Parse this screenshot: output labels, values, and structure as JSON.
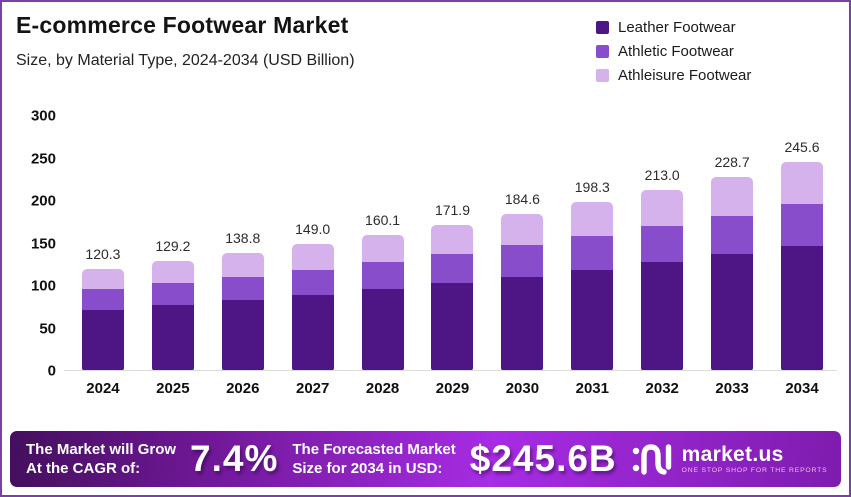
{
  "header": {
    "title": "E-commerce Footwear Market",
    "subtitle": "Size, by Material Type, 2024-2034 (USD Billion)"
  },
  "legend": {
    "items": [
      {
        "label": "Leather Footwear",
        "color": "#4d1684"
      },
      {
        "label": "Athletic Footwear",
        "color": "#874dcb"
      },
      {
        "label": "Athleisure Footwear",
        "color": "#d5b2ec"
      }
    ]
  },
  "chart_data": {
    "type": "bar",
    "stacked": true,
    "title": "E-commerce Footwear Market",
    "subtitle": "Size, by Material Type, 2024-2034 (USD Billion)",
    "categories": [
      "2024",
      "2025",
      "2026",
      "2027",
      "2028",
      "2029",
      "2030",
      "2031",
      "2032",
      "2033",
      "2034"
    ],
    "series": [
      {
        "name": "Leather Footwear",
        "color": "#4d1684",
        "values": [
          72.2,
          77.5,
          83.3,
          89.4,
          96.1,
          103.1,
          110.8,
          119.0,
          127.8,
          137.2,
          147.4
        ]
      },
      {
        "name": "Athletic Footwear",
        "color": "#874dcb",
        "values": [
          24.0,
          25.8,
          27.7,
          29.8,
          32.0,
          34.4,
          36.9,
          39.6,
          42.6,
          45.7,
          49.1
        ]
      },
      {
        "name": "Athleisure Footwear",
        "color": "#d5b2ec",
        "values": [
          24.1,
          25.9,
          27.8,
          29.8,
          32.0,
          34.4,
          36.9,
          39.7,
          42.6,
          45.8,
          49.1
        ]
      }
    ],
    "totals": [
      "120.3",
      "129.2",
      "138.8",
      "149.0",
      "160.1",
      "171.9",
      "184.6",
      "198.3",
      "213.0",
      "228.7",
      "245.6"
    ],
    "xlabel": "",
    "ylabel": "",
    "ylim": [
      0,
      300
    ],
    "y_ticks": [
      0,
      50,
      100,
      150,
      200,
      250,
      300
    ],
    "grid": false,
    "legend_position": "top-right"
  },
  "footer": {
    "cagr_label_line1": "The Market will Grow",
    "cagr_label_line2": "At the CAGR of:",
    "cagr_value": "7.4%",
    "forecast_label_line1": "The Forecasted Market",
    "forecast_label_line2": "Size for 2034 in USD:",
    "forecast_value": "$245.6B",
    "brand": {
      "name": "market.us",
      "tagline": "ONE STOP SHOP FOR THE REPORTS"
    }
  }
}
